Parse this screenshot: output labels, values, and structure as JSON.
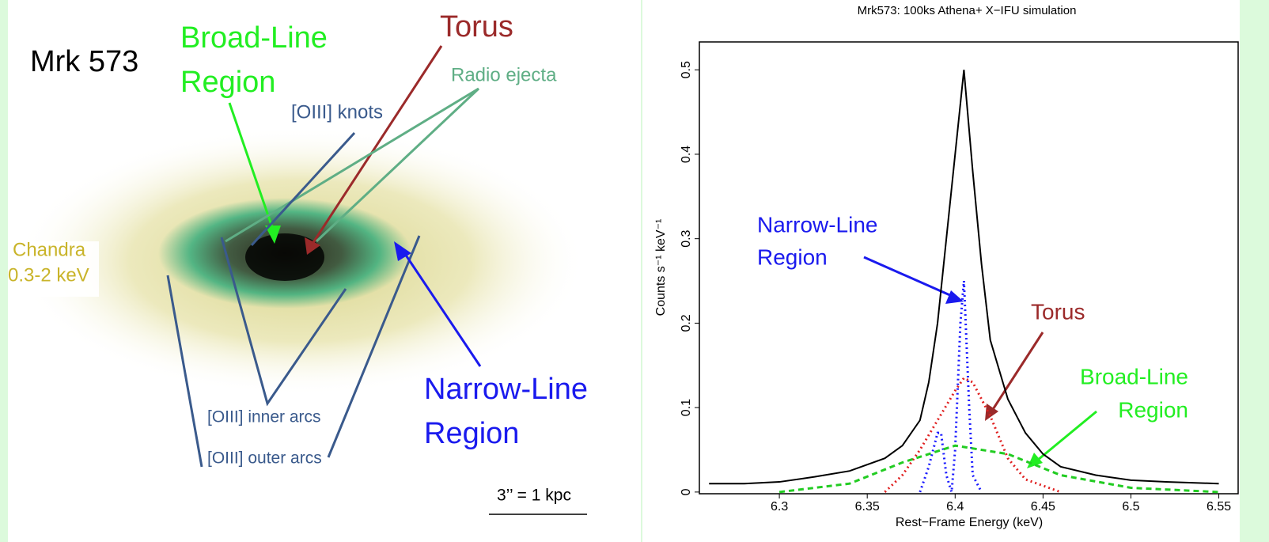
{
  "image_panel": {
    "title": "Mrk 573",
    "broad_line": [
      "Broad-Line",
      "Region"
    ],
    "torus": "Torus",
    "radio": "Radio ejecta",
    "knots": "[OIII] knots",
    "chandra": [
      "Chandra",
      "0.3-2 keV"
    ],
    "narrow_line": [
      "Narrow-Line",
      "Region"
    ],
    "inner_arcs": "[OIII] inner arcs",
    "outer_arcs": "[OIII] outer arcs",
    "scale": "3’’  = 1 kpc"
  },
  "chart_data": {
    "type": "line",
    "title": "Mrk573: 100ks Athena+ X−IFU simulation",
    "x_label": "Rest−Frame Energy (keV)",
    "y_label": "Counts s⁻¹ keV⁻¹",
    "xlim": [
      6.2545,
      6.561
    ],
    "ylim": [
      -0.002,
      0.533
    ],
    "xticks": [
      6.3,
      6.35,
      6.4,
      6.45,
      6.5,
      6.55
    ],
    "yticks": [
      0,
      0.1,
      0.2,
      0.3,
      0.4,
      0.5
    ],
    "series": [
      {
        "color": "#000000",
        "style": "solid",
        "x": [
          6.26,
          6.28,
          6.3,
          6.32,
          6.34,
          6.36,
          6.37,
          6.38,
          6.385,
          6.39,
          6.395,
          6.4,
          6.405,
          6.41,
          6.415,
          6.42,
          6.43,
          6.44,
          6.45,
          6.46,
          6.48,
          6.5,
          6.52,
          6.55
        ],
        "values": [
          0.01,
          0.01,
          0.012,
          0.018,
          0.025,
          0.04,
          0.055,
          0.085,
          0.13,
          0.2,
          0.3,
          0.4,
          0.5,
          0.38,
          0.27,
          0.18,
          0.11,
          0.07,
          0.045,
          0.03,
          0.02,
          0.014,
          0.012,
          0.01
        ]
      },
      {
        "color": "#1a1aff",
        "style": "dotted",
        "x": [
          6.38,
          6.385,
          6.39,
          6.392,
          6.395,
          6.398,
          6.4,
          6.403,
          6.405,
          6.408,
          6.41,
          6.415
        ],
        "values": [
          0,
          0.03,
          0.07,
          0.07,
          0.02,
          0,
          0.05,
          0.2,
          0.25,
          0.1,
          0.02,
          0
        ]
      },
      {
        "color": "#e02020",
        "style": "dotted",
        "x": [
          6.36,
          6.37,
          6.38,
          6.39,
          6.4,
          6.405,
          6.41,
          6.42,
          6.43,
          6.44,
          6.46
        ],
        "values": [
          0,
          0.02,
          0.05,
          0.085,
          0.12,
          0.135,
          0.13,
          0.09,
          0.04,
          0.015,
          0
        ]
      },
      {
        "color": "#22cc22",
        "style": "dashed",
        "x": [
          6.3,
          6.34,
          6.37,
          6.4,
          6.43,
          6.46,
          6.5,
          6.55
        ],
        "values": [
          0,
          0.01,
          0.035,
          0.055,
          0.045,
          0.02,
          0.005,
          0
        ]
      }
    ],
    "annotations": {
      "narrow_line": [
        "Narrow-Line",
        "Region"
      ],
      "torus": "Torus",
      "broad_line": [
        "Broad-Line",
        "Region"
      ]
    }
  }
}
